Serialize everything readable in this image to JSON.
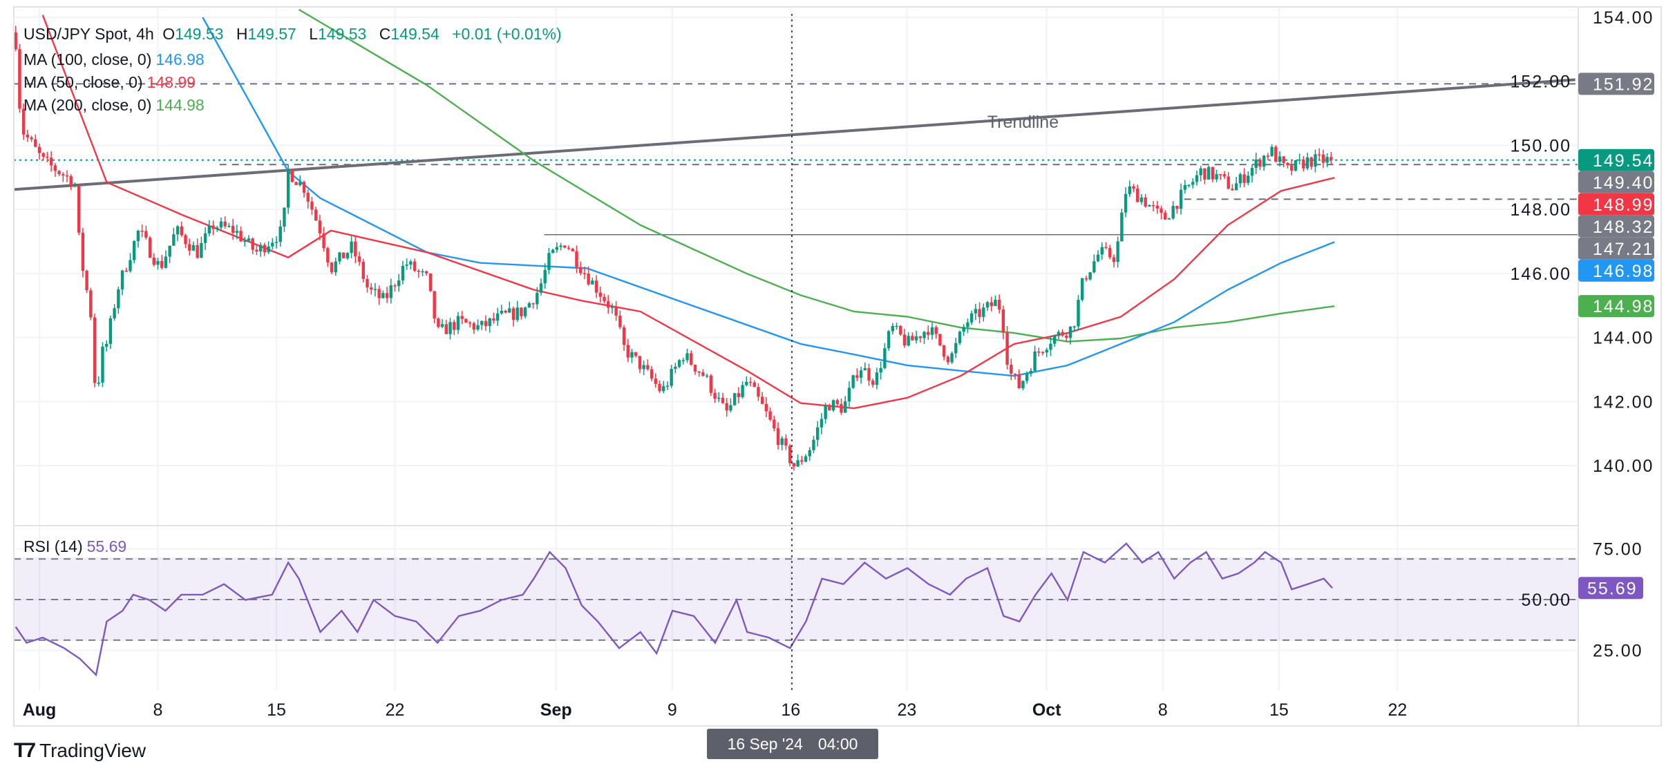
{
  "legend": {
    "symbol": "USD/JPY Spot, 4h",
    "o_label": "O",
    "o": "149.53",
    "h_label": "H",
    "h": "149.57",
    "l_label": "L",
    "l": "149.53",
    "c_label": "C",
    "c": "149.54",
    "change": "+0.01 (+0.01%)",
    "ma100_label": "MA (100, close, 0)",
    "ma100": "146.98",
    "ma50_label": "MA (50, close, 0)",
    "ma50": "148.99",
    "ma200_label": "MA (200, close, 0)",
    "ma200": "144.98",
    "rsi_label": "RSI (14)",
    "rsi": "55.69"
  },
  "crosshair": {
    "date": "16 Sep '24",
    "time": "04:00",
    "td": 31.7
  },
  "brand": "TradingView",
  "colors": {
    "up": "#089981",
    "down": "#f23645",
    "ma50": "#f23645",
    "ma100": "#2196f3",
    "ma200": "#4caf50",
    "rsi": "#7e57c2",
    "level": "#787b86",
    "trend": "#6a6d78"
  },
  "chart_data": {
    "type": "candlestick",
    "title": "USD/JPY Spot, 4h",
    "x_unit": "trading days since Aug 1 2024",
    "ylim": [
      138.9,
      154.6
    ],
    "price_ticks": [
      "154.00",
      "152.00",
      "150.00",
      "148.00",
      "146.00",
      "144.00",
      "142.00",
      "140.00"
    ],
    "time_ticks": [
      {
        "label": "Aug",
        "td": 0,
        "bold": true
      },
      {
        "label": "8",
        "td": 5
      },
      {
        "label": "15",
        "td": 10
      },
      {
        "label": "22",
        "td": 15
      },
      {
        "label": "Sep",
        "td": 21.8,
        "bold": true
      },
      {
        "label": "9",
        "td": 26.7
      },
      {
        "label": "16",
        "td": 31.7
      },
      {
        "label": "23",
        "td": 36.6
      },
      {
        "label": "Oct",
        "td": 42.5,
        "bold": true
      },
      {
        "label": "8",
        "td": 47.4
      },
      {
        "label": "15",
        "td": 52.3
      },
      {
        "label": "22",
        "td": 57.3
      }
    ],
    "close_path": [
      [
        -1.0,
        153.23
      ],
      [
        -0.77,
        150.53
      ],
      [
        0.14,
        149.52
      ],
      [
        1.49,
        148.85
      ],
      [
        1.71,
        146.66
      ],
      [
        2.16,
        144.81
      ],
      [
        2.39,
        141.95
      ],
      [
        2.61,
        143.47
      ],
      [
        2.84,
        143.8
      ],
      [
        3.29,
        145.49
      ],
      [
        4.19,
        147.34
      ],
      [
        5.09,
        146.16
      ],
      [
        5.77,
        147.34
      ],
      [
        6.67,
        146.66
      ],
      [
        7.34,
        147.51
      ],
      [
        8.24,
        147.34
      ],
      [
        9.14,
        146.66
      ],
      [
        10.27,
        147.34
      ],
      [
        10.5,
        149.19
      ],
      [
        11.17,
        148.68
      ],
      [
        11.85,
        147.34
      ],
      [
        12.3,
        146.16
      ],
      [
        13.2,
        146.83
      ],
      [
        13.87,
        145.49
      ],
      [
        14.55,
        145.15
      ],
      [
        15.45,
        146.33
      ],
      [
        16.35,
        145.82
      ],
      [
        16.8,
        144.14
      ],
      [
        17.7,
        144.48
      ],
      [
        18.6,
        144.31
      ],
      [
        19.5,
        144.65
      ],
      [
        20.4,
        144.81
      ],
      [
        21.08,
        145.49
      ],
      [
        21.53,
        146.5
      ],
      [
        22.2,
        147.0
      ],
      [
        22.88,
        146.16
      ],
      [
        23.56,
        145.49
      ],
      [
        24.23,
        144.81
      ],
      [
        24.68,
        143.64
      ],
      [
        25.36,
        143.13
      ],
      [
        26.26,
        142.29
      ],
      [
        27.16,
        143.47
      ],
      [
        28.06,
        142.8
      ],
      [
        28.96,
        141.62
      ],
      [
        29.86,
        142.63
      ],
      [
        30.54,
        141.79
      ],
      [
        31.22,
        140.78
      ],
      [
        31.89,
        139.93
      ],
      [
        32.57,
        140.61
      ],
      [
        33.24,
        141.95
      ],
      [
        33.92,
        141.79
      ],
      [
        34.59,
        143.13
      ],
      [
        35.27,
        142.63
      ],
      [
        35.95,
        144.31
      ],
      [
        36.62,
        143.8
      ],
      [
        37.52,
        144.31
      ],
      [
        38.42,
        143.3
      ],
      [
        39.1,
        144.48
      ],
      [
        39.77,
        144.81
      ],
      [
        40.45,
        145.15
      ],
      [
        40.68,
        144.31
      ],
      [
        40.9,
        142.96
      ],
      [
        41.35,
        142.46
      ],
      [
        42.03,
        143.47
      ],
      [
        42.7,
        143.97
      ],
      [
        43.6,
        144.31
      ],
      [
        44.05,
        145.82
      ],
      [
        44.73,
        146.66
      ],
      [
        45.41,
        146.5
      ],
      [
        45.86,
        148.68
      ],
      [
        46.53,
        148.35
      ],
      [
        47.43,
        147.67
      ],
      [
        48.11,
        148.35
      ],
      [
        49.01,
        149.19
      ],
      [
        49.68,
        149.02
      ],
      [
        50.36,
        148.68
      ],
      [
        51.26,
        149.36
      ],
      [
        51.94,
        149.86
      ],
      [
        52.61,
        149.19
      ],
      [
        53.51,
        149.52
      ],
      [
        54.55,
        149.54
      ]
    ],
    "ma50": [
      [
        0.14,
        154.07
      ],
      [
        2.84,
        148.85
      ],
      [
        5.99,
        147.84
      ],
      [
        10.5,
        146.5
      ],
      [
        12.3,
        147.34
      ],
      [
        16.35,
        146.66
      ],
      [
        20.86,
        145.49
      ],
      [
        22.88,
        145.15
      ],
      [
        25.36,
        144.81
      ],
      [
        29.86,
        142.96
      ],
      [
        32.12,
        141.95
      ],
      [
        34.37,
        141.79
      ],
      [
        36.62,
        142.12
      ],
      [
        38.87,
        142.8
      ],
      [
        41.13,
        143.8
      ],
      [
        43.38,
        144.14
      ],
      [
        45.63,
        144.65
      ],
      [
        47.88,
        145.82
      ],
      [
        50.14,
        147.51
      ],
      [
        52.39,
        148.58
      ],
      [
        54.64,
        148.99
      ]
    ],
    "ma100": [
      [
        6.89,
        154.0
      ],
      [
        10.5,
        149.19
      ],
      [
        11.85,
        148.35
      ],
      [
        16.35,
        146.66
      ],
      [
        18.6,
        146.33
      ],
      [
        23.11,
        146.16
      ],
      [
        27.61,
        144.98
      ],
      [
        32.12,
        143.8
      ],
      [
        34.37,
        143.47
      ],
      [
        36.62,
        143.13
      ],
      [
        38.87,
        142.96
      ],
      [
        41.13,
        142.8
      ],
      [
        43.38,
        143.13
      ],
      [
        45.63,
        143.8
      ],
      [
        47.88,
        144.48
      ],
      [
        50.14,
        145.49
      ],
      [
        52.39,
        146.33
      ],
      [
        54.64,
        146.98
      ]
    ],
    "ma200": [
      [
        10.95,
        154.24
      ],
      [
        16.35,
        151.88
      ],
      [
        20.86,
        149.52
      ],
      [
        25.36,
        147.51
      ],
      [
        29.86,
        145.99
      ],
      [
        32.12,
        145.32
      ],
      [
        34.37,
        144.81
      ],
      [
        36.62,
        144.65
      ],
      [
        38.87,
        144.31
      ],
      [
        41.13,
        144.14
      ],
      [
        43.38,
        143.87
      ],
      [
        45.63,
        143.97
      ],
      [
        47.88,
        144.31
      ],
      [
        50.14,
        144.48
      ],
      [
        52.39,
        144.75
      ],
      [
        54.64,
        144.98
      ]
    ],
    "trendline": {
      "label": "Trendline",
      "from": [
        -1.3,
        148.62
      ],
      "to": [
        64.8,
        152.05
      ],
      "label_at": [
        41.5,
        150.55
      ]
    },
    "levels": [
      {
        "price": 151.92,
        "style": "dashed",
        "from_td": -1.3,
        "label": "151.92",
        "badge": "#787b86"
      },
      {
        "price": 149.54,
        "style": "dotted",
        "from_td": -1.3,
        "label": "149.54",
        "badge": "#089981"
      },
      {
        "price": 149.4,
        "style": "dashed",
        "from_td": 7.6,
        "label": "149.40",
        "badge": "#787b86"
      },
      {
        "price": 148.32,
        "style": "dashed",
        "from_td": 48.3,
        "label": "148.32",
        "badge": "#787b86"
      },
      {
        "price": 147.21,
        "style": "solid",
        "from_td": 21.3,
        "label": "147.21",
        "badge": "#787b86"
      }
    ],
    "ma_badges": [
      {
        "price": 148.99,
        "label": "148.99",
        "badge": "#f23645"
      },
      {
        "price": 146.98,
        "label": "146.98",
        "badge": "#2196f3"
      },
      {
        "price": 144.98,
        "label": "144.98",
        "badge": "#4caf50"
      }
    ],
    "rsi": {
      "ticks": [
        "75.00",
        "50.00",
        "25.00"
      ],
      "bands": [
        70,
        50,
        30
      ],
      "last_label": "55.69",
      "path": [
        [
          -1.0,
          36.6
        ],
        [
          -0.54,
          28.7
        ],
        [
          0.14,
          31.3
        ],
        [
          1.04,
          26.1
        ],
        [
          1.71,
          20.8
        ],
        [
          2.39,
          12.9
        ],
        [
          2.84,
          39.2
        ],
        [
          3.51,
          44.5
        ],
        [
          3.96,
          52.4
        ],
        [
          4.64,
          49.8
        ],
        [
          5.32,
          44.5
        ],
        [
          5.99,
          52.4
        ],
        [
          6.89,
          52.4
        ],
        [
          7.79,
          57.6
        ],
        [
          8.69,
          49.8
        ],
        [
          9.82,
          52.4
        ],
        [
          10.5,
          68.2
        ],
        [
          10.95,
          60.3
        ],
        [
          11.85,
          34.0
        ],
        [
          12.75,
          44.5
        ],
        [
          13.42,
          34.0
        ],
        [
          14.1,
          49.8
        ],
        [
          15.0,
          41.9
        ],
        [
          15.9,
          39.2
        ],
        [
          16.8,
          28.7
        ],
        [
          17.7,
          41.9
        ],
        [
          18.6,
          44.5
        ],
        [
          19.5,
          49.8
        ],
        [
          20.4,
          52.4
        ],
        [
          20.86,
          60.3
        ],
        [
          21.53,
          73.4
        ],
        [
          22.2,
          65.5
        ],
        [
          22.88,
          47.1
        ],
        [
          23.56,
          39.2
        ],
        [
          24.46,
          26.1
        ],
        [
          25.36,
          34.0
        ],
        [
          26.04,
          23.5
        ],
        [
          26.71,
          44.5
        ],
        [
          27.61,
          41.9
        ],
        [
          28.51,
          28.7
        ],
        [
          29.41,
          49.8
        ],
        [
          29.86,
          34.0
        ],
        [
          30.77,
          31.3
        ],
        [
          31.67,
          26.1
        ],
        [
          32.34,
          39.2
        ],
        [
          33.02,
          60.3
        ],
        [
          33.92,
          57.6
        ],
        [
          34.82,
          68.2
        ],
        [
          35.72,
          60.3
        ],
        [
          36.62,
          65.5
        ],
        [
          37.52,
          57.6
        ],
        [
          38.42,
          52.4
        ],
        [
          39.1,
          60.3
        ],
        [
          40.0,
          65.5
        ],
        [
          40.68,
          41.9
        ],
        [
          41.35,
          39.2
        ],
        [
          42.03,
          52.4
        ],
        [
          42.7,
          62.9
        ],
        [
          43.38,
          49.8
        ],
        [
          44.05,
          73.4
        ],
        [
          44.95,
          68.2
        ],
        [
          45.86,
          77.6
        ],
        [
          46.53,
          68.2
        ],
        [
          47.21,
          73.4
        ],
        [
          47.88,
          60.3
        ],
        [
          48.56,
          68.2
        ],
        [
          49.23,
          73.4
        ],
        [
          49.91,
          60.3
        ],
        [
          50.59,
          62.9
        ],
        [
          51.26,
          68.2
        ],
        [
          51.71,
          73.4
        ],
        [
          52.39,
          68.2
        ],
        [
          52.84,
          55.0
        ],
        [
          53.51,
          57.6
        ],
        [
          54.19,
          60.3
        ],
        [
          54.55,
          55.69
        ]
      ]
    }
  }
}
